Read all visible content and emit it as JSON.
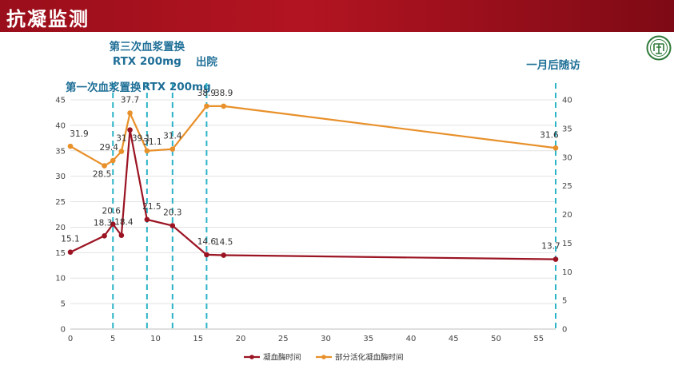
{
  "header": {
    "title": "抗凝监测"
  },
  "logo": {
    "icon": "hospital-logo-icon",
    "color": "#2f7a3a"
  },
  "colors": {
    "pt": "#9b1423",
    "aptt": "#e8902a",
    "event_line": "#2bb3c6",
    "event_text": "#1f6f97"
  },
  "chart_data": {
    "type": "line",
    "x_axis": {
      "ticks": [
        0,
        5,
        10,
        15,
        20,
        25,
        30,
        35,
        40,
        45,
        50,
        55
      ],
      "range": [
        0,
        57
      ]
    },
    "y_left": {
      "ticks": [
        0,
        5,
        10,
        15,
        20,
        25,
        30,
        35,
        40,
        45
      ],
      "range": [
        0,
        45
      ]
    },
    "y_right": {
      "ticks": [
        0,
        5,
        10,
        15,
        20,
        25,
        30,
        35,
        40
      ],
      "range": [
        0,
        40
      ]
    },
    "grid": true,
    "legend_position": "bottom",
    "series": [
      {
        "name": "凝血酶时间",
        "axis": "left",
        "points": [
          {
            "x": 0,
            "y": 15.1,
            "label": "15.1"
          },
          {
            "x": 4,
            "y": 18.3,
            "label": "18.3"
          },
          {
            "x": 5,
            "y": 20.6,
            "label": "20.6"
          },
          {
            "x": 6,
            "y": 18.4,
            "label": "18.4"
          },
          {
            "x": 7,
            "y": 39.1,
            "label": "39.1"
          },
          {
            "x": 9,
            "y": 21.5,
            "label": "21.5"
          },
          {
            "x": 12,
            "y": 20.3,
            "label": "20.3"
          },
          {
            "x": 16,
            "y": 14.6,
            "label": "14.6"
          },
          {
            "x": 18,
            "y": 14.5,
            "label": "14.5"
          },
          {
            "x": 57,
            "y": 13.7,
            "label": "13.7"
          }
        ]
      },
      {
        "name": "部分活化凝血酶时间",
        "axis": "right",
        "points": [
          {
            "x": 0,
            "y": 31.9,
            "label": "31.9"
          },
          {
            "x": 4,
            "y": 28.5,
            "label": "28.5"
          },
          {
            "x": 5,
            "y": 29.4,
            "label": "29.4"
          },
          {
            "x": 6,
            "y": 31,
            "label": "31"
          },
          {
            "x": 7,
            "y": 37.7,
            "label": "37.7"
          },
          {
            "x": 9,
            "y": 31.1,
            "label": "31.1"
          },
          {
            "x": 12,
            "y": 31.4,
            "label": "31.4"
          },
          {
            "x": 16,
            "y": 38.9,
            "label": "38.9"
          },
          {
            "x": 18,
            "y": 38.9,
            "label": "38.9"
          },
          {
            "x": 57,
            "y": 31.6,
            "label": "31.6"
          }
        ]
      }
    ],
    "events": [
      {
        "x": 5,
        "lines": [
          "第一次血浆置换"
        ]
      },
      {
        "x": 9,
        "lines": [
          "第三次血浆置换",
          "RTX 200mg"
        ]
      },
      {
        "x": 12,
        "lines": [
          "RTX 200mg"
        ]
      },
      {
        "x": 16,
        "lines": [
          "出院"
        ]
      },
      {
        "x": 57,
        "lines": [
          "一月后随访"
        ]
      }
    ]
  }
}
